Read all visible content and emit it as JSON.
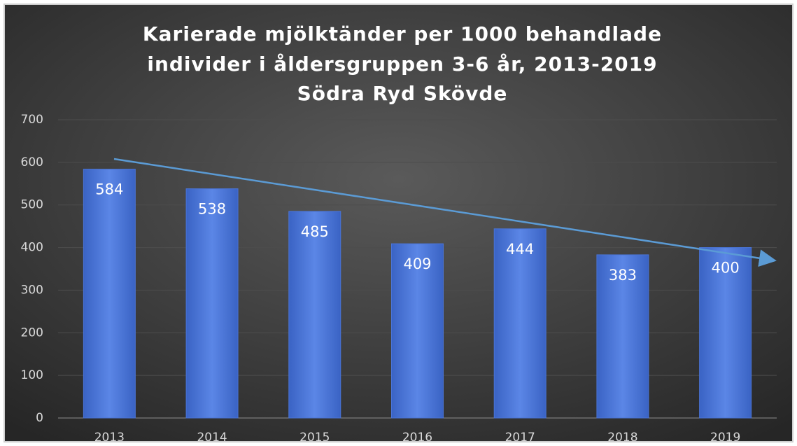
{
  "chart_data": {
    "type": "bar",
    "title": [
      "Karierade mjölktänder per 1000 behandlade",
      "individer i åldersgruppen 3-6 år, 2013-2019",
      "Södra Ryd Skövde"
    ],
    "categories": [
      "2013",
      "2014",
      "2015",
      "2016",
      "2017",
      "2018",
      "2019"
    ],
    "values": [
      584,
      538,
      485,
      409,
      444,
      383,
      400
    ],
    "color": "#4a74d6",
    "ylim": [
      0,
      700
    ],
    "yticks": [
      0,
      100,
      200,
      300,
      400,
      500,
      600,
      700
    ],
    "grid": true
  }
}
